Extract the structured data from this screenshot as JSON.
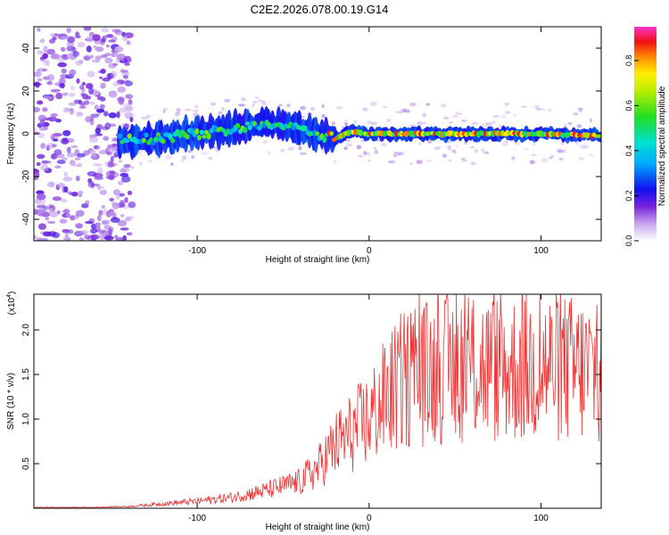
{
  "title": "C2E2.2026.078.00.19.G14",
  "chart_data": [
    {
      "type": "heatmap",
      "name": "spectrogram",
      "xlabel": "Height of straight line (km)",
      "ylabel": "Frequency (Hz)",
      "xlim": [
        -195,
        135
      ],
      "ylim": [
        -50,
        50
      ],
      "xticks": [
        -100,
        0,
        100
      ],
      "xtick_labels": [
        "-100",
        "0",
        "100"
      ],
      "yticks": [
        -40,
        -20,
        0,
        20,
        40
      ],
      "ytick_labels": [
        "-40",
        "-20",
        "0",
        "20",
        "40"
      ],
      "colorbar": {
        "label": "Normalized spectral amplitude",
        "range": [
          0,
          0.95
        ],
        "ticks": [
          0.0,
          0.2,
          0.4,
          0.6,
          0.8
        ],
        "tick_labels": [
          "0.0",
          "0.2",
          "0.4",
          "0.6",
          "0.8"
        ]
      },
      "ridge": {
        "x": [
          -140,
          -120,
          -100,
          -80,
          -60,
          -50,
          -40,
          -30,
          -20,
          -10,
          0,
          20,
          50,
          100,
          135
        ],
        "y": [
          -3,
          -2,
          0,
          2,
          5,
          4,
          2,
          0,
          -2,
          1,
          0,
          0,
          0,
          0,
          -1
        ]
      }
    },
    {
      "type": "line",
      "name": "snr",
      "xlabel": "Height of straight line (km)",
      "ylabel": "SNR (10 * v/v)",
      "scale_note": "(x10",
      "scale_exp": "4",
      "xlim": [
        -195,
        135
      ],
      "ylim": [
        0,
        2.4
      ],
      "xticks": [
        -100,
        0,
        100
      ],
      "xtick_labels": [
        "-100",
        "0",
        "100"
      ],
      "yticks": [
        0.5,
        1.0,
        1.5,
        2.0
      ],
      "ytick_labels": [
        "0.5",
        "1.0",
        "1.5",
        "2.0"
      ],
      "trend": {
        "x": [
          -195,
          -160,
          -140,
          -120,
          -100,
          -80,
          -60,
          -40,
          -30,
          -20,
          -10,
          0,
          10,
          20,
          40,
          60,
          80,
          100,
          120,
          135
        ],
        "y": [
          0.01,
          0.01,
          0.02,
          0.05,
          0.08,
          0.12,
          0.2,
          0.3,
          0.45,
          0.7,
          0.85,
          1.0,
          1.25,
          1.45,
          1.55,
          1.6,
          1.55,
          1.6,
          1.55,
          1.55
        ]
      },
      "color": "#ee3333"
    }
  ]
}
